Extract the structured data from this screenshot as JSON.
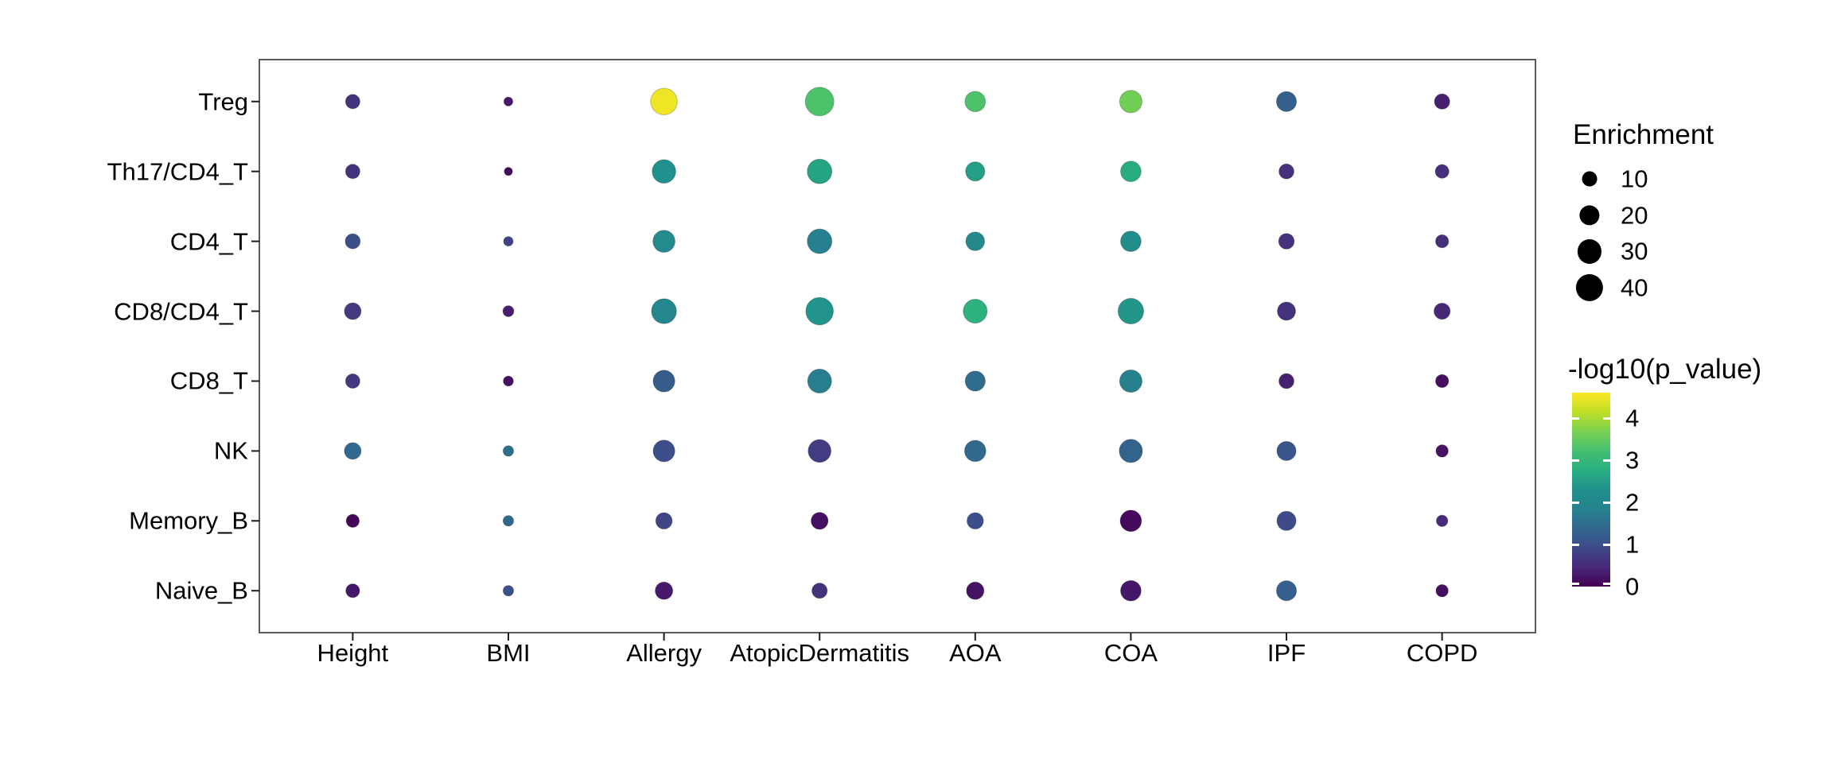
{
  "figure": {
    "background": "#ffffff",
    "panel_border_color": "#5a5a5a",
    "tick_color": "#1a1a1a"
  },
  "chart_data": {
    "type": "scatter",
    "subtype": "bubble-matrix",
    "title": "",
    "xlabel": "",
    "ylabel": "",
    "x_categories": [
      "Height",
      "BMI",
      "Allergy",
      "AtopicDermatitis",
      "AOA",
      "COA",
      "IPF",
      "COPD"
    ],
    "y_categories": [
      "Treg",
      "Th17/CD4_T",
      "CD4_T",
      "CD8/CD4_T",
      "CD8_T",
      "NK",
      "Memory_B",
      "Naive_B"
    ],
    "enrichment": [
      [
        9,
        2.5,
        38,
        45,
        21,
        26,
        20,
        10.5
      ],
      [
        9,
        2,
        29,
        32,
        18,
        21,
        10,
        8
      ],
      [
        10,
        3,
        25,
        32,
        17,
        21,
        11,
        7
      ],
      [
        13,
        4.5,
        33,
        41,
        30,
        35,
        16,
        12
      ],
      [
        9,
        3.5,
        24,
        30,
        20,
        26,
        10,
        7
      ],
      [
        13,
        4,
        24,
        27,
        23,
        28,
        18,
        6
      ],
      [
        7,
        4,
        12.5,
        13.5,
        12.5,
        23,
        18,
        5
      ],
      [
        8,
        4,
        14.5,
        10.5,
        14.5,
        21,
        20,
        6
      ]
    ],
    "neglog10p": [
      [
        0.6,
        0.25,
        4.5,
        3.3,
        3.3,
        3.6,
        1.25,
        0.35
      ],
      [
        0.6,
        0.1,
        2.3,
        2.6,
        2.5,
        2.75,
        0.6,
        0.55
      ],
      [
        1.0,
        0.8,
        2.1,
        1.8,
        2.05,
        2.2,
        0.6,
        0.55
      ],
      [
        0.7,
        0.35,
        2.0,
        2.35,
        2.85,
        2.4,
        0.6,
        0.45
      ],
      [
        0.65,
        0.15,
        1.2,
        1.75,
        1.45,
        1.8,
        0.35,
        0.15
      ],
      [
        1.4,
        1.5,
        1.0,
        0.75,
        1.4,
        1.3,
        1.1,
        0.2
      ],
      [
        0.05,
        1.4,
        0.85,
        0.15,
        1.0,
        0.1,
        0.95,
        0.5
      ],
      [
        0.25,
        1.0,
        0.28,
        0.6,
        0.2,
        0.25,
        1.25,
        0.15
      ]
    ],
    "size_legend": {
      "title": "Enrichment",
      "values": [
        10,
        20,
        30,
        40
      ]
    },
    "color_legend": {
      "title": "-log10(p_value)",
      "ticks": [
        4,
        3,
        2,
        1,
        0
      ],
      "domain": [
        0,
        4.6
      ],
      "palette": [
        "#440154",
        "#482878",
        "#3e4a89",
        "#31688e",
        "#26828e",
        "#20918c",
        "#28ae80",
        "#44bf70",
        "#7ad151",
        "#bddf26",
        "#fde725"
      ]
    },
    "legend_position": "right",
    "grid": false
  }
}
